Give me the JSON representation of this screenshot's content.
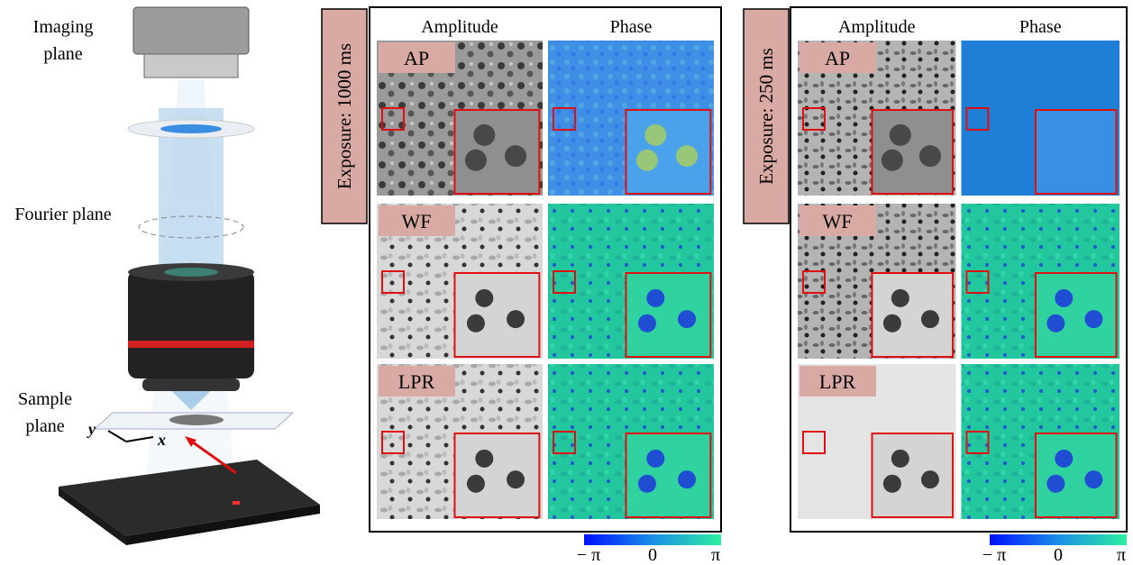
{
  "illustration": {
    "planes": [
      "Imaging plane",
      "Fourier plane",
      "Sample plane"
    ],
    "axes": [
      "y",
      "x"
    ]
  },
  "panels": [
    {
      "exposure": "Exposure: 1000 ms",
      "columns": [
        "Amplitude",
        "Phase"
      ],
      "rows": [
        "AP",
        "WF",
        "LPR"
      ],
      "colorbar": [
        "− π",
        "0",
        "π"
      ]
    },
    {
      "exposure": "Exposure: 250 ms",
      "columns": [
        "Amplitude",
        "Phase"
      ],
      "rows": [
        "AP",
        "WF",
        "LPR"
      ],
      "colorbar": [
        "− π",
        "0",
        "π"
      ]
    }
  ]
}
